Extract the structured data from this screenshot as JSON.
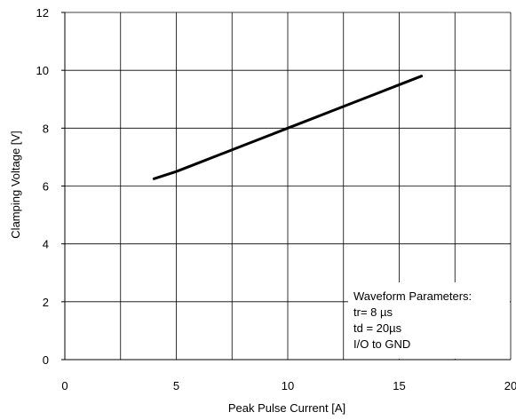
{
  "chart_data": {
    "type": "line",
    "title": "",
    "xlabel": "Peak Pulse Current [A]",
    "ylabel": "Clamping Voltage [V]",
    "xlim": [
      0,
      20
    ],
    "ylim": [
      0,
      12
    ],
    "x_ticks": [
      0,
      5,
      10,
      15,
      20
    ],
    "x_tick_labels": [
      "0",
      "5",
      "10",
      "15",
      "20"
    ],
    "y_ticks": [
      0,
      2,
      4,
      6,
      8,
      10,
      12
    ],
    "y_tick_labels": [
      "0",
      "2",
      "4",
      "6",
      "8",
      "10",
      "12"
    ],
    "x_gridlines": [
      0,
      2.5,
      5,
      7.5,
      10,
      12.5,
      15,
      17.5,
      20
    ],
    "y_gridlines": [
      0,
      2,
      4,
      6,
      8,
      10,
      12
    ],
    "grid": true,
    "legend": "none",
    "series": [
      {
        "color": "#000000",
        "x": [
          4,
          5,
          6,
          7,
          8,
          9,
          10,
          11,
          12,
          13,
          14,
          15,
          16
        ],
        "y": [
          6.25,
          6.5,
          6.8,
          7.1,
          7.4,
          7.7,
          8.0,
          8.3,
          8.6,
          8.9,
          9.2,
          9.5,
          9.8
        ]
      }
    ],
    "annotation": {
      "lines": [
        "Waveform Parameters:",
        "tr= 8 µs",
        "td = 20µs",
        "I/O to GND"
      ]
    }
  }
}
